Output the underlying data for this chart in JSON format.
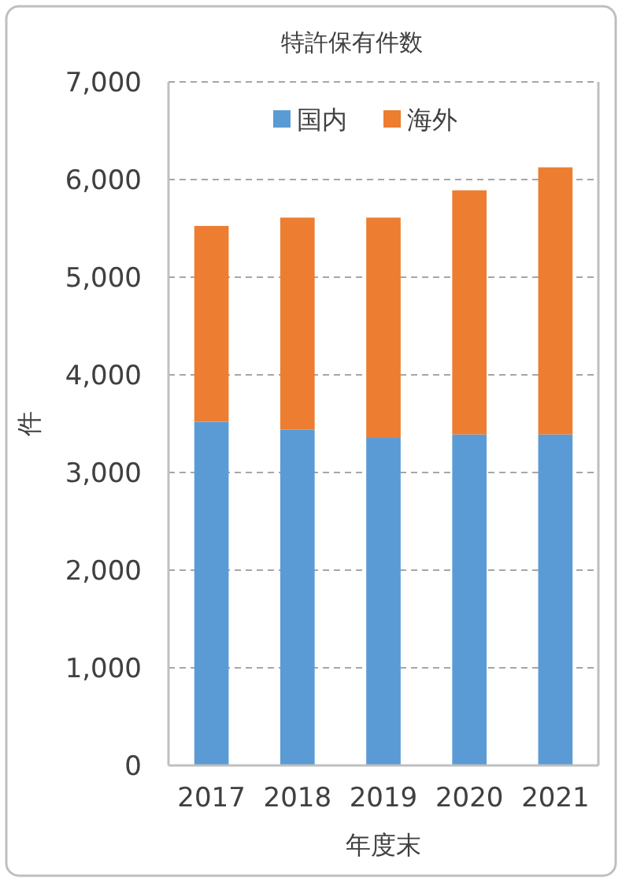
{
  "chart_data": {
    "type": "bar",
    "title": "特許保有件数",
    "xlabel": "年度末",
    "ylabel": "件",
    "categories": [
      "2017",
      "2018",
      "2019",
      "2020",
      "2021"
    ],
    "stacked": true,
    "series": [
      {
        "name": "国内",
        "color": "#5b9bd5",
        "values": [
          3520,
          3440,
          3355,
          3390,
          3390
        ]
      },
      {
        "name": "海外",
        "color": "#ed7d31",
        "values": [
          2005,
          2170,
          2255,
          2500,
          2735
        ]
      }
    ],
    "ylim": [
      0,
      7000
    ],
    "yticks": [
      {
        "value": 0,
        "label": "0"
      },
      {
        "value": 1000,
        "label": "1,000"
      },
      {
        "value": 2000,
        "label": "2,000"
      },
      {
        "value": 3000,
        "label": "3,000"
      },
      {
        "value": 4000,
        "label": "4,000"
      },
      {
        "value": 5000,
        "label": "5,000"
      },
      {
        "value": 6000,
        "label": "6,000"
      },
      {
        "value": 7000,
        "label": "7,000"
      }
    ],
    "grid": "y",
    "legend": "top"
  }
}
